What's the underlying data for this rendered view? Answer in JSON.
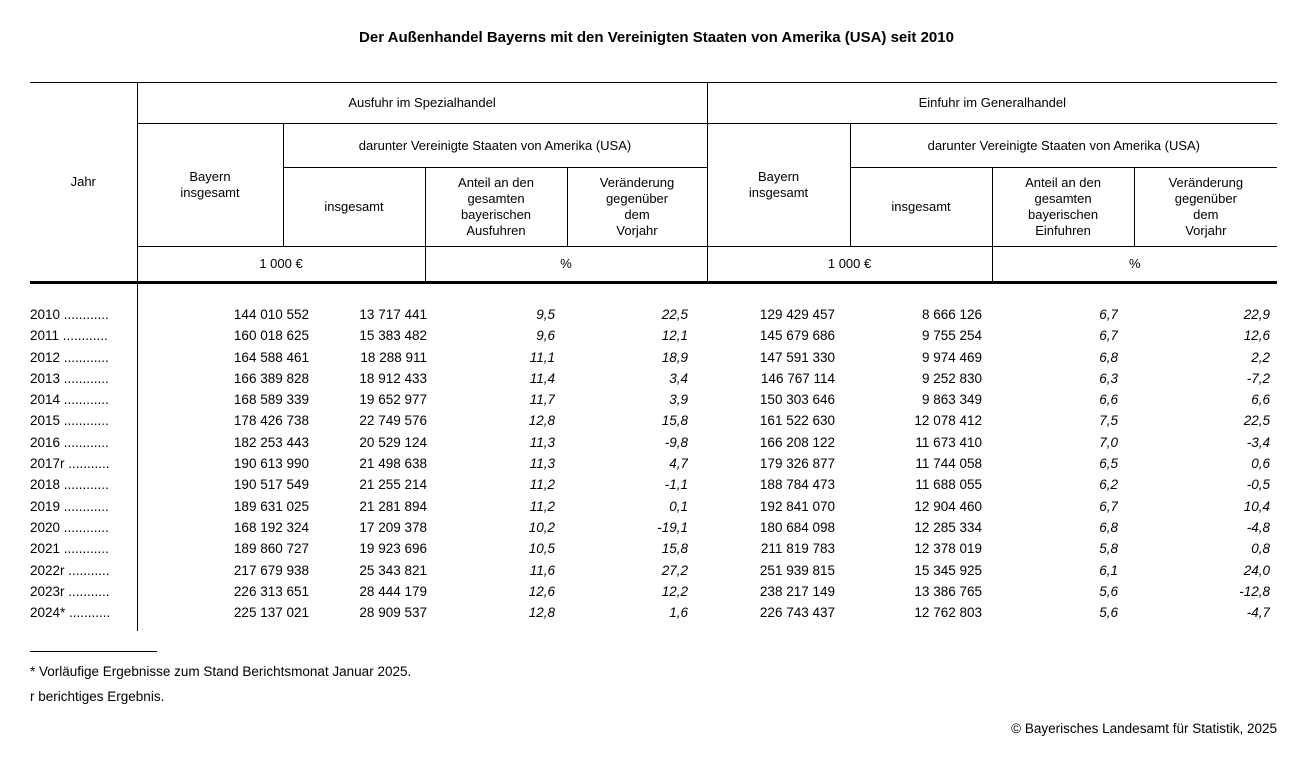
{
  "title": "Der Außenhandel Bayerns mit den Vereinigten Staaten von Amerika (USA) seit 2010",
  "table": {
    "jahr_label": "Jahr",
    "groups": [
      {
        "label": "Ausfuhr im Spezialhandel",
        "bayern_label": "Bayern\ninsgesamt",
        "darunter_label": "darunter Vereinigte Staaten von Amerika (USA)",
        "col_insgesamt": "insgesamt",
        "col_anteil": "Anteil an den\ngesamten\nbayerischen\nAusfuhren",
        "col_veraenderung": "Veränderung\ngegenüber\ndem\nVorjahr",
        "unit_value": "1 000 €",
        "unit_percent": "%"
      },
      {
        "label": "Einfuhr im Generalhandel",
        "bayern_label": "Bayern\ninsgesamt",
        "darunter_label": "darunter Vereinigte Staaten von Amerika (USA)",
        "col_insgesamt": "insgesamt",
        "col_anteil": "Anteil an den\ngesamten\nbayerischen\nEinfuhren",
        "col_veraenderung": "Veränderung\ngegenüber\ndem\nVorjahr",
        "unit_value": "1 000 €",
        "unit_percent": "%"
      }
    ],
    "rows": [
      {
        "year": "2010 ............",
        "values": [
          "144 010 552",
          "13 717 441",
          "9,5",
          "22,5",
          "129 429 457",
          "8 666 126",
          "6,7",
          "22,9"
        ]
      },
      {
        "year": "2011 ............",
        "values": [
          "160 018 625",
          "15 383 482",
          "9,6",
          "12,1",
          "145 679 686",
          "9 755 254",
          "6,7",
          "12,6"
        ]
      },
      {
        "year": "2012 ............",
        "values": [
          "164 588 461",
          "18 288 911",
          "11,1",
          "18,9",
          "147 591 330",
          "9 974 469",
          "6,8",
          "2,2"
        ]
      },
      {
        "year": "2013 ............",
        "values": [
          "166 389 828",
          "18 912 433",
          "11,4",
          "3,4",
          "146 767 114",
          "9 252 830",
          "6,3",
          "-7,2"
        ]
      },
      {
        "year": "2014 ............",
        "values": [
          "168 589 339",
          "19 652 977",
          "11,7",
          "3,9",
          "150 303 646",
          "9 863 349",
          "6,6",
          "6,6"
        ]
      },
      {
        "year": "2015 ............",
        "values": [
          "178 426 738",
          "22 749 576",
          "12,8",
          "15,8",
          "161 522 630",
          "12 078 412",
          "7,5",
          "22,5"
        ]
      },
      {
        "year": "2016 ............",
        "values": [
          "182 253 443",
          "20 529 124",
          "11,3",
          "-9,8",
          "166 208 122",
          "11 673 410",
          "7,0",
          "-3,4"
        ]
      },
      {
        "year": "2017r ...........",
        "values": [
          "190 613 990",
          "21 498 638",
          "11,3",
          "4,7",
          "179 326 877",
          "11 744 058",
          "6,5",
          "0,6"
        ]
      },
      {
        "year": "2018 ............",
        "values": [
          "190 517 549",
          "21 255 214",
          "11,2",
          "-1,1",
          "188 784 473",
          "11 688 055",
          "6,2",
          "-0,5"
        ]
      },
      {
        "year": "2019 ............",
        "values": [
          "189 631 025",
          "21 281 894",
          "11,2",
          "0,1",
          "192 841 070",
          "12 904 460",
          "6,7",
          "10,4"
        ]
      },
      {
        "year": "2020 ............",
        "values": [
          "168 192 324",
          "17 209 378",
          "10,2",
          "-19,1",
          "180 684 098",
          "12 285 334",
          "6,8",
          "-4,8"
        ]
      },
      {
        "year": "2021 ............",
        "values": [
          "189 860 727",
          "19 923 696",
          "10,5",
          "15,8",
          "211 819 783",
          "12 378 019",
          "5,8",
          "0,8"
        ]
      },
      {
        "year": "2022r ...........",
        "values": [
          "217 679 938",
          "25 343 821",
          "11,6",
          "27,2",
          "251 939 815",
          "15 345 925",
          "6,1",
          "24,0"
        ]
      },
      {
        "year": "2023r ...........",
        "values": [
          "226 313 651",
          "28 444 179",
          "12,6",
          "12,2",
          "238 217 149",
          "13 386 765",
          "5,6",
          "-12,8"
        ]
      },
      {
        "year": "2024* ...........",
        "values": [
          "225 137 021",
          "28 909 537",
          "12,8",
          "1,6",
          "226 743 437",
          "12 762 803",
          "5,6",
          "-4,7"
        ]
      }
    ]
  },
  "footnotes": [
    "* Vorläufige Ergebnisse zum Stand Berichtsmonat Januar 2025.",
    "r berichtiges Ergebnis."
  ],
  "copyright": "© Bayerisches Landesamt für Statistik, 2025"
}
